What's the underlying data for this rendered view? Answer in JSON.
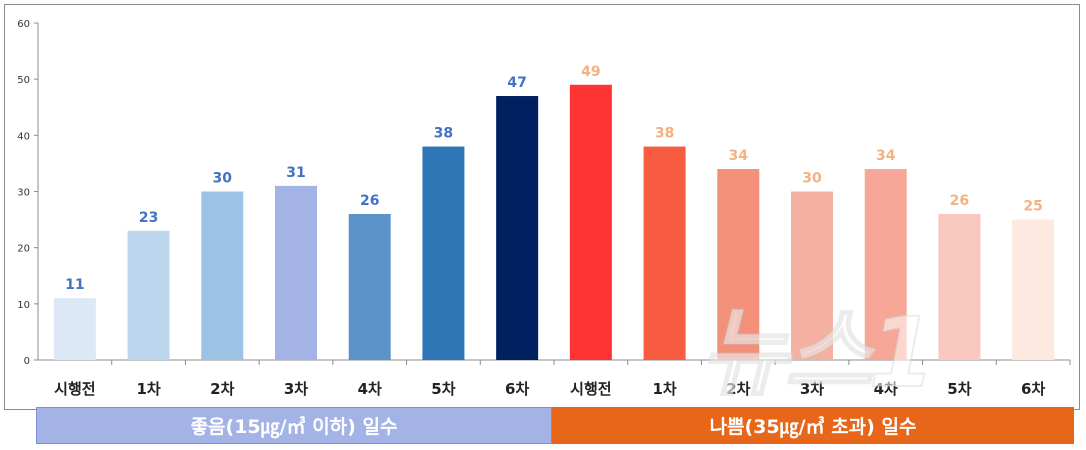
{
  "chart_data": {
    "type": "bar",
    "categories": [
      "시행전",
      "1차",
      "2차",
      "3차",
      "4차",
      "5차",
      "6차",
      "시행전",
      "1차",
      "2차",
      "3차",
      "4차",
      "5차",
      "6차"
    ],
    "values": [
      11,
      23,
      30,
      31,
      26,
      38,
      47,
      49,
      38,
      34,
      30,
      34,
      26,
      25
    ],
    "bar_colors": [
      "#dde8f6",
      "#bcd6ee",
      "#9cc2e6",
      "#a3b3e6",
      "#5b93c9",
      "#2e75b6",
      "#002060",
      "#ff3333",
      "#f75c40",
      "#f3907a",
      "#f4b0a0",
      "#f6a797",
      "#f8c8be",
      "#fde9e0"
    ],
    "label_colors": [
      "#4472c4",
      "#4472c4",
      "#4472c4",
      "#4472c4",
      "#4472c4",
      "#4472c4",
      "#4472c4",
      "#f4b183",
      "#f4b183",
      "#f4b183",
      "#f4b183",
      "#f4b183",
      "#f4b183",
      "#f4b183"
    ],
    "ylim": [
      0,
      60
    ],
    "yticks": [
      0,
      10,
      20,
      30,
      40,
      50,
      60
    ],
    "grid": false,
    "groups": [
      {
        "label": "좋음(15㎍/㎥ 이하) 일수",
        "color": "#a3b3e6"
      },
      {
        "label": "나쁨(35㎍/㎥ 초과) 일수",
        "color": "#e8661a"
      }
    ]
  },
  "watermark": "뉴스1"
}
